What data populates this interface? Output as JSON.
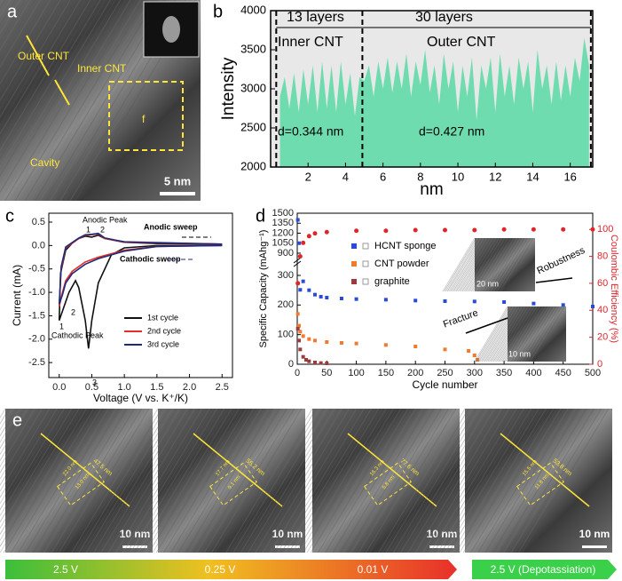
{
  "chart_data": [
    {
      "type": "area",
      "panel": "b",
      "xlabel": "nm",
      "ylabel": "Intensity",
      "color": "#6fdcb0",
      "xlim": [
        0,
        17.2
      ],
      "ylim": [
        2000,
        4000
      ],
      "xticks": [
        2,
        4,
        6,
        8,
        10,
        12,
        14,
        16
      ],
      "yticks": [
        2000,
        2500,
        3000,
        3500,
        4000
      ],
      "x": [
        0.5,
        0.75,
        1,
        1.25,
        1.5,
        1.75,
        2,
        2.25,
        2.5,
        2.75,
        3,
        3.25,
        3.5,
        3.75,
        4,
        4.25,
        4.5,
        4.75,
        5,
        5.25,
        5.5,
        5.75,
        6,
        6.25,
        6.5,
        6.75,
        7,
        7.25,
        7.5,
        7.75,
        8,
        8.25,
        8.5,
        8.75,
        9,
        9.25,
        9.5,
        9.75,
        10,
        10.25,
        10.5,
        10.75,
        11,
        11.25,
        11.5,
        11.75,
        12,
        12.25,
        12.5,
        12.75,
        13,
        13.25,
        13.5,
        13.75,
        14,
        14.25,
        14.5,
        14.75,
        15,
        15.25,
        15.5,
        15.75,
        16,
        16.25,
        16.5,
        16.75,
        17
      ],
      "values": [
        2900,
        3150,
        2750,
        3200,
        2700,
        3250,
        2800,
        3300,
        2700,
        3350,
        2750,
        3300,
        2700,
        3350,
        2800,
        3200,
        2650,
        3150,
        3100,
        3300,
        2900,
        3350,
        3000,
        3400,
        2950,
        3350,
        3000,
        3450,
        2900,
        3350,
        3050,
        3500,
        2950,
        3300,
        2800,
        3450,
        3000,
        3350,
        2700,
        3300,
        2900,
        3400,
        2600,
        3300,
        3000,
        3400,
        2700,
        3450,
        2900,
        3300,
        2800,
        3400,
        3000,
        3350,
        2700,
        3500,
        3000,
        3300,
        2800,
        3350,
        2850,
        3300,
        2900,
        3400,
        3100,
        3650,
        3300
      ],
      "dividers": [
        0.3,
        4.9,
        17.1
      ],
      "annotations": [
        "13 layers",
        "30 layers",
        "Inner CNT",
        "Outer CNT",
        "d=0.344 nm",
        "d=0.427 nm"
      ]
    },
    {
      "type": "line",
      "panel": "c",
      "xlabel": "Voltage (V vs. K⁺/K)",
      "ylabel": "Current (mA)",
      "xlim": [
        -0.16,
        2.66
      ],
      "ylim": [
        -2.82,
        0.69
      ],
      "xticks": [
        {
          "value": 0,
          "label": "0.0"
        },
        0.5,
        {
          "value": 1,
          "label": "1.0"
        },
        1.5,
        {
          "value": 2,
          "label": "2.0"
        },
        2.5
      ],
      "yticks": [
        0.5,
        {
          "value": 0,
          "label": "0.0"
        },
        -0.5,
        {
          "value": -1,
          "label": "-1.0"
        },
        -1.5,
        {
          "value": -2,
          "label": "-2.0"
        },
        -2.5
      ],
      "series": [
        {
          "name": "1st cycle",
          "color": "#111111",
          "x": [
            2.5,
            1.5,
            1.0,
            0.8,
            0.6,
            0.5,
            0.45,
            0.4,
            0.3,
            0.25,
            0.15,
            0.05,
            0.0,
            0.02,
            0.1,
            0.2,
            0.3,
            0.4,
            0.5,
            0.6,
            0.7,
            1.0,
            1.5,
            2.5
          ],
          "values": [
            0.0,
            0.0,
            -0.05,
            -0.2,
            -0.8,
            -1.6,
            -2.2,
            -1.6,
            -0.9,
            -0.75,
            -1.0,
            -1.4,
            -1.6,
            -0.6,
            -0.1,
            0.05,
            0.15,
            0.2,
            0.18,
            0.22,
            0.15,
            0.07,
            0.04,
            0.03
          ]
        },
        {
          "name": "2nd cycle",
          "color": "#e0302a",
          "x": [
            2.5,
            1.5,
            1.0,
            0.6,
            0.4,
            0.2,
            0.1,
            0.05,
            0.0,
            0.03,
            0.1,
            0.3,
            0.4,
            0.5,
            0.6,
            0.7,
            1.0,
            2.5
          ],
          "values": [
            0.0,
            -0.02,
            -0.1,
            -0.25,
            -0.35,
            -0.55,
            -0.75,
            -1.0,
            -1.3,
            -0.5,
            -0.05,
            0.15,
            0.22,
            0.23,
            0.25,
            0.15,
            0.07,
            0.03
          ]
        },
        {
          "name": "3rd cycle",
          "color": "#1f2a7a",
          "x": [
            2.5,
            1.5,
            1.0,
            0.6,
            0.4,
            0.2,
            0.1,
            0.05,
            0.0,
            0.03,
            0.1,
            0.3,
            0.4,
            0.5,
            0.6,
            0.7,
            1.0,
            2.5
          ],
          "values": [
            0.0,
            -0.02,
            -0.12,
            -0.28,
            -0.4,
            -0.6,
            -0.8,
            -1.05,
            -1.25,
            -0.45,
            -0.03,
            0.16,
            0.23,
            0.24,
            0.26,
            0.16,
            0.08,
            0.03
          ]
        }
      ],
      "annotations": [
        "Anodic Peak",
        "Cathodic Peak",
        "Anodic sweep",
        "Cathodic sweep",
        "1",
        "2",
        "1",
        "2",
        "3"
      ]
    },
    {
      "type": "scatter",
      "panel": "d",
      "xlabel": "Cycle number",
      "ylabel": "Specific Capacity (mAhg⁻¹)",
      "y2label": "Coulombic Efficiency (%)",
      "xlim": [
        0,
        500
      ],
      "ylim": [
        0,
        1500
      ],
      "break": [
        300,
        900
      ],
      "y2lim": [
        0,
        112
      ],
      "xticks": [
        0,
        50,
        100,
        150,
        200,
        250,
        300,
        350,
        400,
        450,
        500
      ],
      "yticks": [
        0,
        100,
        200,
        300,
        900,
        1050,
        1200,
        1350,
        1500
      ],
      "y2ticks": [
        0,
        20,
        40,
        60,
        80,
        100
      ],
      "series": [
        {
          "name": "HCNT sponge",
          "color": "#2a4bd7",
          "x": [
            1,
            3,
            5,
            10,
            20,
            30,
            40,
            50,
            75,
            100,
            150,
            200,
            250,
            300,
            350,
            400,
            450,
            500
          ],
          "values": [
            1400,
            1050,
            350,
            280,
            250,
            235,
            228,
            225,
            222,
            220,
            218,
            215,
            213,
            212,
            210,
            205,
            200,
            195
          ]
        },
        {
          "name": "CNT powder",
          "color": "#f07a2e",
          "x": [
            1,
            3,
            5,
            10,
            20,
            30,
            50,
            75,
            100,
            150,
            200,
            250,
            290,
            300,
            305
          ],
          "values": [
            170,
            130,
            110,
            95,
            85,
            80,
            75,
            72,
            70,
            65,
            60,
            50,
            45,
            30,
            15
          ]
        },
        {
          "name": "graphite",
          "color": "#9c3b3b",
          "x": [
            1,
            3,
            5,
            10,
            15,
            20,
            30,
            40,
            50
          ],
          "values": [
            120,
            80,
            50,
            25,
            15,
            10,
            6,
            4,
            3
          ]
        },
        {
          "color": "#e0242a",
          "axis": "y2",
          "x": [
            1,
            5,
            10,
            20,
            30,
            50,
            100,
            150,
            200,
            250,
            300,
            350,
            400,
            450,
            500
          ],
          "values": [
            60,
            80,
            90,
            95,
            97,
            98,
            99,
            99,
            99.5,
            99.5,
            99.5,
            100,
            100,
            100,
            100
          ]
        }
      ],
      "annotations": [
        "Robustness",
        "Fracture",
        "20 nm",
        "10 nm"
      ]
    }
  ],
  "panel_a": {
    "letter": "a",
    "labels": [
      "Outer CNT",
      "Inner CNT",
      "Cavity",
      "f"
    ],
    "scale": "5 nm"
  },
  "panel_e": {
    "letter": "e",
    "images": [
      {
        "measures": [
          "47.5 nm",
          "22.0 nm",
          "13.0 nm"
        ],
        "scale": "10 nm"
      },
      {
        "measures": [
          "55.2 nm",
          "17.7 nm",
          "9.1 nm"
        ],
        "scale": "10 nm"
      },
      {
        "measures": [
          "77.6 nm",
          "16.3 nm",
          "5.8 nm"
        ],
        "scale": "10 nm"
      },
      {
        "measures": [
          "53.8 nm",
          "15.5 nm",
          "11.8 nm"
        ],
        "scale": "10 nm"
      }
    ]
  },
  "voltage_bar": {
    "stages": [
      "2.5 V",
      "0.25 V",
      "0.01 V"
    ],
    "final": "2.5 V (Depotassiation)"
  }
}
